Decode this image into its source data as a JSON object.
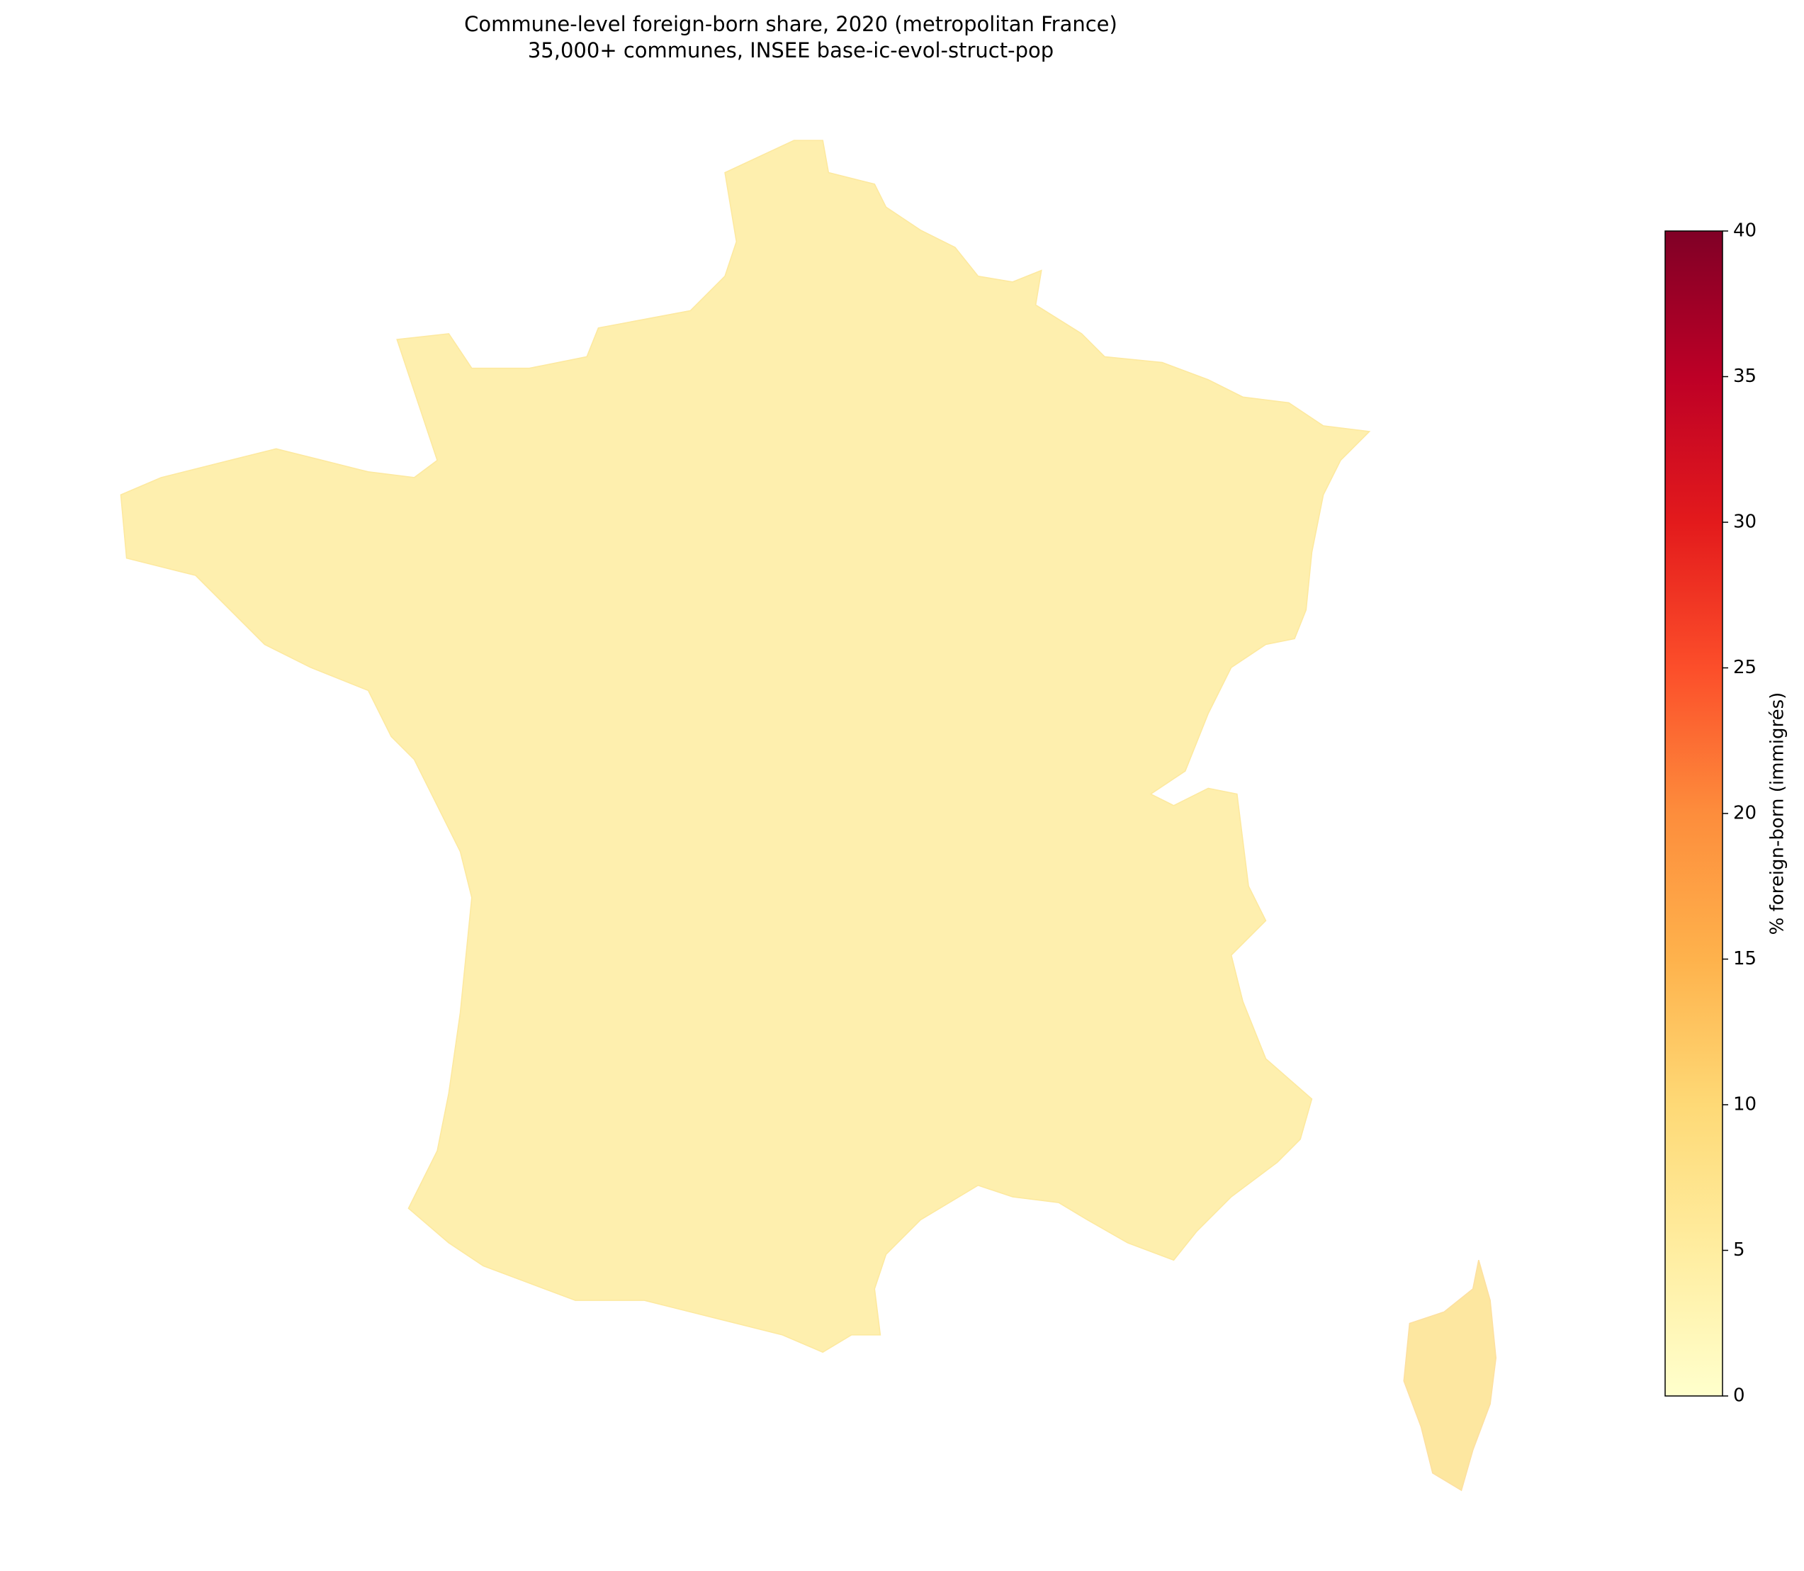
{
  "chart_data": {
    "type": "choropleth",
    "title": "Commune-level foreign-born share, 2020 (metropolitan France)",
    "subtitle": "35,000+ communes, INSEE base-ic-evol-struct-pop",
    "colorbar_label": "% foreign-born (immigrés)",
    "colormap": "YlOrRd",
    "colormap_colors": [
      "#ffffcc",
      "#ffeda0",
      "#fed976",
      "#feb24c",
      "#fd8d3c",
      "#fc4e2a",
      "#e31a1c",
      "#bd0026",
      "#800026"
    ],
    "clim": [
      0,
      40
    ],
    "cticks": [
      0,
      5,
      10,
      15,
      20,
      25,
      30,
      35,
      40
    ]
  }
}
